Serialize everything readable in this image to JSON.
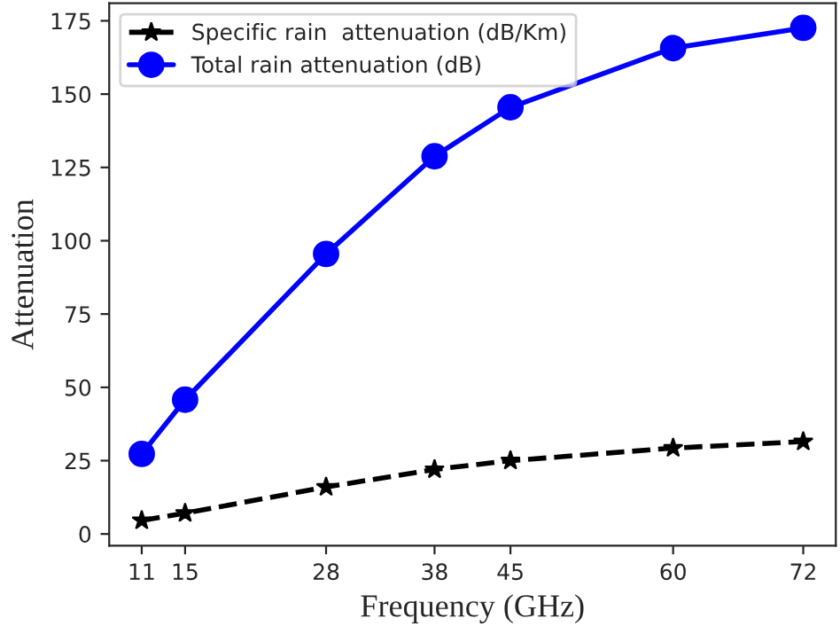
{
  "chart_data": {
    "type": "line",
    "xlabel": "Frequency (GHz)",
    "ylabel": "Attenuation",
    "x": [
      11,
      15,
      28,
      38,
      45,
      60,
      72
    ],
    "series": [
      {
        "name": "Specific rain  attenuation (dB/Km)",
        "color": "#000000",
        "marker": "star",
        "line_style": "dashed",
        "values": [
          4.6,
          7.1,
          16,
          22,
          25,
          29.3,
          31.5
        ]
      },
      {
        "name": "Total rain attenuation (dB)",
        "color": "#0000ff",
        "marker": "circle",
        "line_style": "solid",
        "values": [
          27.3,
          45.8,
          95.5,
          128.8,
          145.5,
          165.7,
          172.6
        ]
      }
    ],
    "xlim": [
      8,
      75
    ],
    "ylim": [
      -4,
      181
    ],
    "xticks": [
      11,
      15,
      28,
      38,
      45,
      60,
      72
    ],
    "yticks": [
      0,
      25,
      50,
      75,
      100,
      125,
      150,
      175
    ],
    "grid": false,
    "legend": "top left"
  }
}
